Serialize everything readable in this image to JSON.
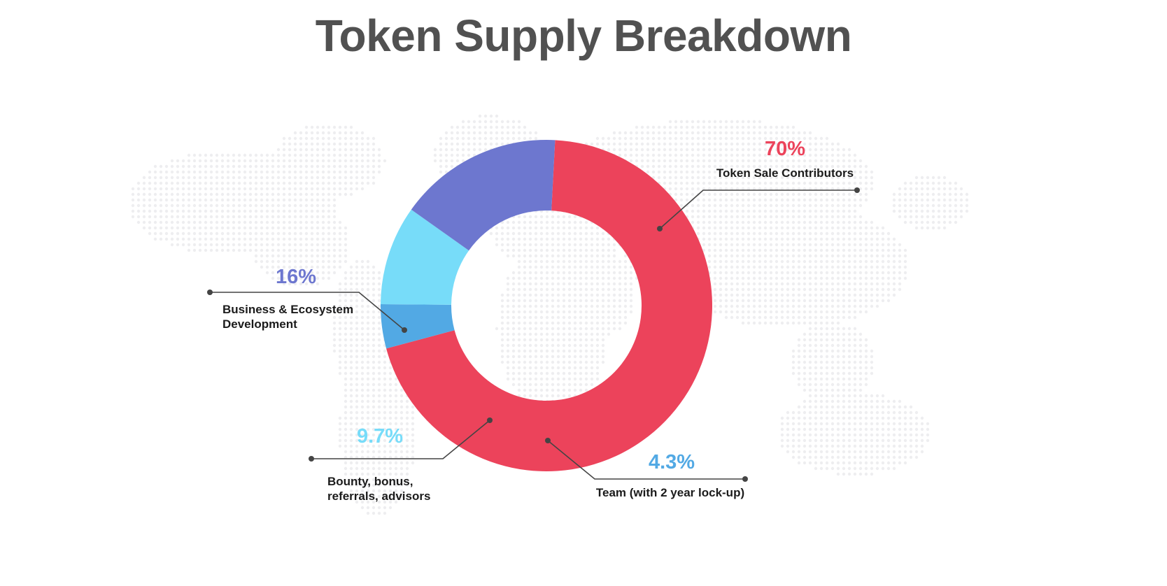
{
  "title": "Token Supply Breakdown",
  "chart_data": {
    "type": "pie",
    "title": "Token Supply Breakdown",
    "donut": true,
    "slices": [
      {
        "label": "Token Sale Contributors",
        "label_lines": [
          "Token Sale Contributors"
        ],
        "value": 70,
        "value_label": "70%",
        "color": "#ec435b"
      },
      {
        "label": "Team (with 2 year lock-up)",
        "label_lines": [
          "Team (with 2 year lock-up)"
        ],
        "value": 4.3,
        "value_label": "4.3%",
        "color": "#52a9e4"
      },
      {
        "label": "Bounty, bonus, referrals, advisors",
        "label_lines": [
          "Bounty, bonus,",
          "referrals, advisors"
        ],
        "value": 9.7,
        "value_label": "9.7%",
        "color": "#77dcf9"
      },
      {
        "label": "Business & Ecosystem Development",
        "label_lines": [
          "Business & Ecosystem",
          "Development"
        ],
        "value": 16,
        "value_label": "16%",
        "color": "#6d77cf"
      }
    ],
    "background": "dotted-world-map"
  }
}
